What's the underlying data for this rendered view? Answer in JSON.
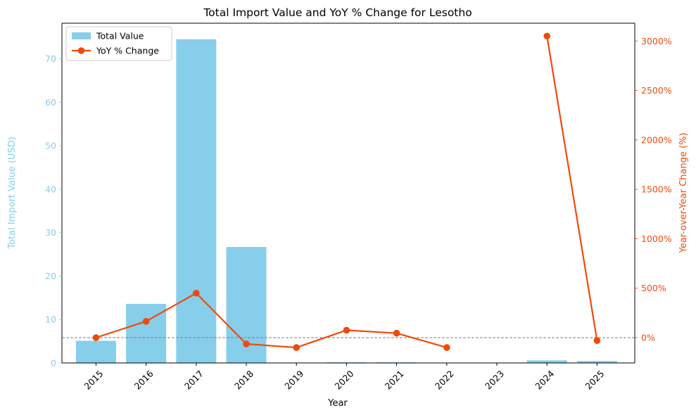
{
  "chart_data": {
    "type": "bar",
    "title": "Total Import Value and YoY % Change for Lesotho",
    "xlabel": "Year",
    "categories": [
      "2015",
      "2016",
      "2017",
      "2018",
      "2019",
      "2020",
      "2021",
      "2022",
      "2023",
      "2024",
      "2025"
    ],
    "series": [
      {
        "name": "Total Value",
        "type": "bar",
        "axis": "left",
        "color": "#87CEEB",
        "values": [
          5.1,
          13.6,
          74.5,
          26.7,
          0.0,
          0.15,
          0.15,
          0.0,
          0.0,
          0.6,
          0.45
        ]
      },
      {
        "name": "YoY % Change",
        "type": "line",
        "axis": "right",
        "color": "#F04A0A",
        "values": [
          0,
          165,
          450,
          -64,
          -100,
          75,
          45,
          -100,
          null,
          3050,
          -30
        ]
      }
    ],
    "y_left": {
      "label": "Total Import Value (USD)",
      "ylim": [
        0,
        78.2
      ],
      "ticks": [
        0,
        10,
        20,
        30,
        40,
        50,
        60,
        70
      ],
      "tick_labels": [
        "0",
        "10",
        "20",
        "30",
        "40",
        "50",
        "60",
        "70"
      ],
      "color": "#87CEEB"
    },
    "y_right": {
      "label": "Year-over-Year Change (%)",
      "ylim": [
        -256,
        3180
      ],
      "ticks": [
        0,
        500,
        1000,
        1500,
        2000,
        2500,
        3000
      ],
      "tick_labels": [
        "0%",
        "500%",
        "1000%",
        "1500%",
        "2000%",
        "2500%",
        "3000%"
      ],
      "color": "#F04A0A"
    },
    "reference_line": {
      "axis": "right",
      "value": 0,
      "style": "dashed",
      "color": "#808080"
    },
    "legend": {
      "placement": "upper-left",
      "entries": [
        "Total Value",
        "YoY % Change"
      ]
    },
    "grid": false
  }
}
